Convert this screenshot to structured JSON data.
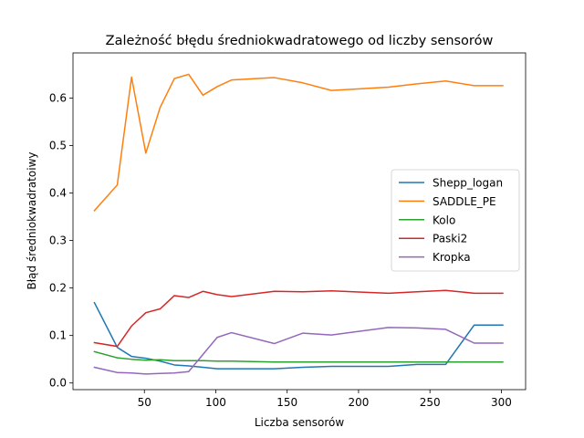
{
  "chart_data": {
    "type": "line",
    "title": "Zależność błędu średniokwadratowego od liczby sensorów",
    "xlabel": "Liczba sensorów",
    "ylabel": "Błąd średniokwadratoiwy",
    "xlim": [
      0,
      317
    ],
    "ylim": [
      -0.014,
      0.695
    ],
    "xticks": [
      50,
      100,
      150,
      200,
      250,
      300
    ],
    "yticks": [
      0.0,
      0.1,
      0.2,
      0.3,
      0.4,
      0.5,
      0.6
    ],
    "xtick_labels": [
      "50",
      "100",
      "150",
      "200",
      "250",
      "300"
    ],
    "ytick_labels": [
      "0.0",
      "0.1",
      "0.2",
      "0.3",
      "0.4",
      "0.5",
      "0.6"
    ],
    "grid": false,
    "legend_position": "center-right",
    "x": [
      15,
      31,
      41,
      51,
      61,
      71,
      81,
      91,
      101,
      111,
      141,
      161,
      181,
      221,
      241,
      261,
      281,
      301
    ],
    "series": [
      {
        "name": "Shepp_logan",
        "color": "#1f77b4",
        "values": [
          0.169,
          0.075,
          0.056,
          0.052,
          0.046,
          0.038,
          0.036,
          0.033,
          0.03,
          0.03,
          0.03,
          0.033,
          0.035,
          0.035,
          0.039,
          0.039,
          0.122,
          0.122
        ]
      },
      {
        "name": "SADDLE_PE",
        "color": "#ff7f0e",
        "values": [
          0.363,
          0.417,
          0.644,
          0.484,
          0.58,
          0.641,
          0.65,
          0.606,
          0.624,
          0.638,
          0.643,
          0.632,
          0.616,
          0.623,
          0.63,
          0.636,
          0.626,
          0.626
        ]
      },
      {
        "name": "Kolo",
        "color": "#2ca02c",
        "values": [
          0.066,
          0.053,
          0.05,
          0.048,
          0.049,
          0.047,
          0.047,
          0.047,
          0.046,
          0.046,
          0.044,
          0.044,
          0.044,
          0.044,
          0.044,
          0.044,
          0.044,
          0.044
        ]
      },
      {
        "name": "Paski2",
        "color": "#d62728",
        "values": [
          0.085,
          0.077,
          0.12,
          0.148,
          0.156,
          0.184,
          0.18,
          0.193,
          0.186,
          0.182,
          0.193,
          0.192,
          0.194,
          0.189,
          0.192,
          0.195,
          0.189,
          0.189
        ]
      },
      {
        "name": "Kropka",
        "color": "#9467bd",
        "values": [
          0.033,
          0.022,
          0.021,
          0.019,
          0.02,
          0.021,
          0.024,
          0.06,
          0.096,
          0.106,
          0.083,
          0.105,
          0.101,
          0.117,
          0.116,
          0.113,
          0.084,
          0.084
        ]
      }
    ]
  }
}
